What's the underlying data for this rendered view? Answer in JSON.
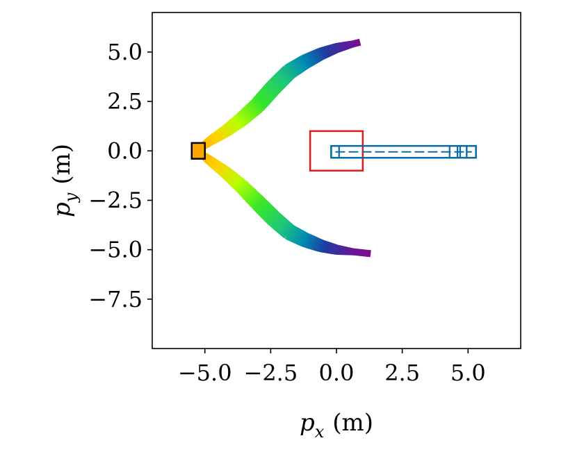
{
  "chart_data": {
    "type": "scatter",
    "xlabel": {
      "symbol": "p",
      "subscript": "x",
      "unit": "(m)"
    },
    "ylabel": {
      "symbol": "p",
      "subscript": "y",
      "unit": "(m)"
    },
    "xlim": [
      -7.0,
      7.0
    ],
    "ylim": [
      -10.0,
      7.0
    ],
    "xticks": [
      -5.0,
      -2.5,
      0.0,
      2.5,
      5.0
    ],
    "xtick_labels": [
      "−5.0",
      "−2.5",
      "0.0",
      "2.5",
      "5.0"
    ],
    "yticks": [
      5.0,
      2.5,
      0.0,
      -2.5,
      -5.0,
      -7.5
    ],
    "ytick_labels": [
      "5.0",
      "2.5",
      "0.0",
      "−2.5",
      "−5.0",
      "−7.5"
    ],
    "grid": false,
    "colormap": [
      "#ffa500",
      "#ffd200",
      "#b4ff00",
      "#37e628",
      "#1ec878",
      "#008cb4",
      "#1e3ca0",
      "#5a1e9b",
      "#820a8c"
    ],
    "series": [
      {
        "kind": "trajectory-upper",
        "points": [
          [
            -5.2,
            0.1
          ],
          [
            -4.8,
            0.5
          ],
          [
            -4.2,
            1.0
          ],
          [
            -3.6,
            1.6
          ],
          [
            -3.0,
            2.3
          ],
          [
            -2.4,
            3.2
          ],
          [
            -1.8,
            4.0
          ],
          [
            -1.2,
            4.5
          ],
          [
            -0.6,
            4.9
          ],
          [
            0.0,
            5.2
          ],
          [
            0.6,
            5.4
          ],
          [
            0.9,
            5.5
          ]
        ]
      },
      {
        "kind": "trajectory-lower",
        "points": [
          [
            -5.2,
            -0.1
          ],
          [
            -4.8,
            -0.5
          ],
          [
            -4.2,
            -1.1
          ],
          [
            -3.6,
            -1.8
          ],
          [
            -3.0,
            -2.6
          ],
          [
            -2.4,
            -3.4
          ],
          [
            -1.8,
            -4.1
          ],
          [
            -1.2,
            -4.5
          ],
          [
            -0.6,
            -4.8
          ],
          [
            0.0,
            -5.0
          ],
          [
            0.6,
            -5.1
          ],
          [
            1.3,
            -5.2
          ]
        ]
      }
    ],
    "rectangles": [
      {
        "kind": "start-box",
        "x": [
          -5.5,
          -5.0
        ],
        "y": [
          -0.4,
          0.4
        ],
        "fill": "#ffa500",
        "edge": "#000000"
      },
      {
        "kind": "goal-box",
        "x": [
          -1.0,
          1.0
        ],
        "y": [
          -1.0,
          1.0
        ],
        "fill": "none",
        "edge": "#e41a1c"
      },
      {
        "kind": "obstacle-bar",
        "x": [
          -0.2,
          5.3
        ],
        "y": [
          -0.35,
          0.25
        ],
        "fill": "none",
        "edge": "#0a6aa9"
      }
    ],
    "colors": {
      "goal": "#e41a1c",
      "obstacle": "#0a6aa9",
      "start": "#ffa500"
    }
  }
}
